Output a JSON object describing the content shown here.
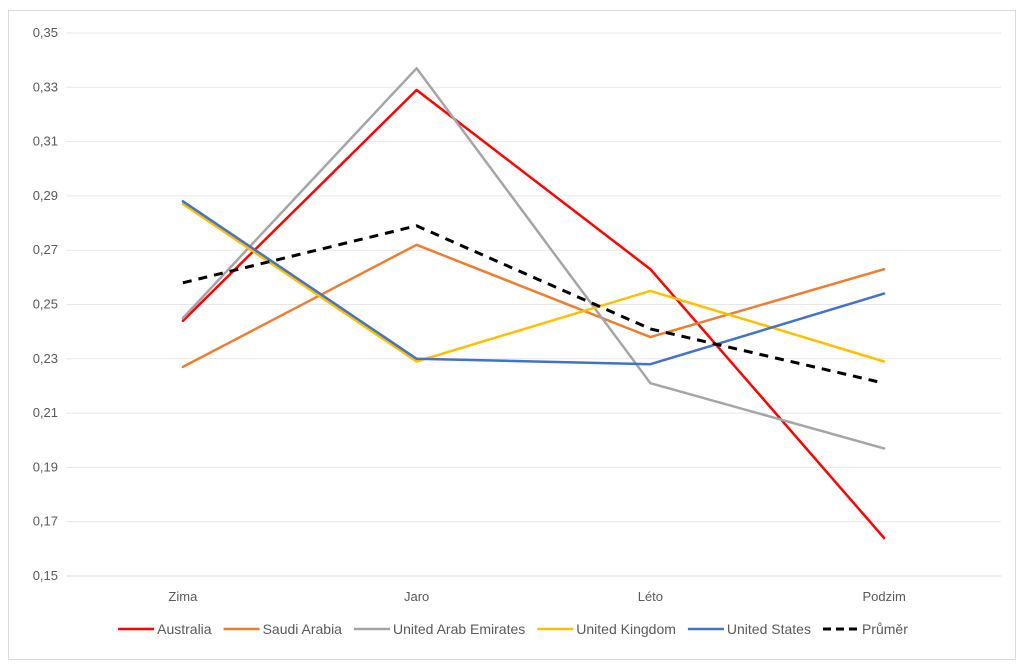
{
  "chart_data": {
    "type": "line",
    "title": "",
    "xlabel": "",
    "ylabel": "",
    "categories": [
      "Zima",
      "Jaro",
      "Léto",
      "Podzim"
    ],
    "ylim": [
      0.15,
      0.35
    ],
    "ytick_labels": [
      "0,15",
      "0,17",
      "0,19",
      "0,21",
      "0,23",
      "0,25",
      "0,27",
      "0,29",
      "0,31",
      "0,33",
      "0,35"
    ],
    "grid": "horizontal",
    "legend_position": "bottom",
    "series": [
      {
        "name": "Australia",
        "color": "#ff0000",
        "dashed": false,
        "values": [
          0.244,
          0.329,
          0.263,
          0.164
        ]
      },
      {
        "name": "Saudi Arabia",
        "color": "#ed7d31",
        "dashed": false,
        "values": [
          0.227,
          0.272,
          0.238,
          0.263
        ]
      },
      {
        "name": "United Arab Emirates",
        "color": "#a5a5a5",
        "dashed": false,
        "values": [
          0.245,
          0.337,
          0.221,
          0.197
        ]
      },
      {
        "name": "United Kingdom",
        "color": "#ffc000",
        "dashed": false,
        "values": [
          0.287,
          0.229,
          0.255,
          0.229
        ]
      },
      {
        "name": "United States",
        "color": "#4472c4",
        "dashed": false,
        "values": [
          0.288,
          0.23,
          0.228,
          0.254
        ]
      },
      {
        "name": "Průměr",
        "color": "#000000",
        "dashed": true,
        "values": [
          0.258,
          0.279,
          0.241,
          0.221
        ]
      }
    ]
  }
}
